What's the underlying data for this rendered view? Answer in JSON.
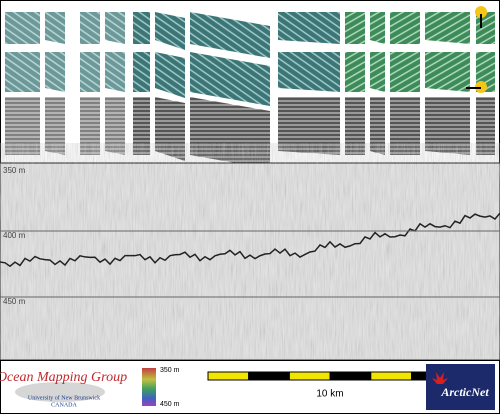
{
  "profile": {
    "depth_labels": [
      "350 m",
      "400 m",
      "450 m"
    ]
  },
  "footer": {
    "logo": {
      "title": "Ocean Mapping Group",
      "university": "University of New Brunswick",
      "country": "CANADA"
    },
    "depth_scale": {
      "top": "350 m",
      "bottom": "450 m"
    },
    "scale_bar": {
      "label": "10 km"
    },
    "partner": {
      "name": "ArcticNet"
    }
  }
}
